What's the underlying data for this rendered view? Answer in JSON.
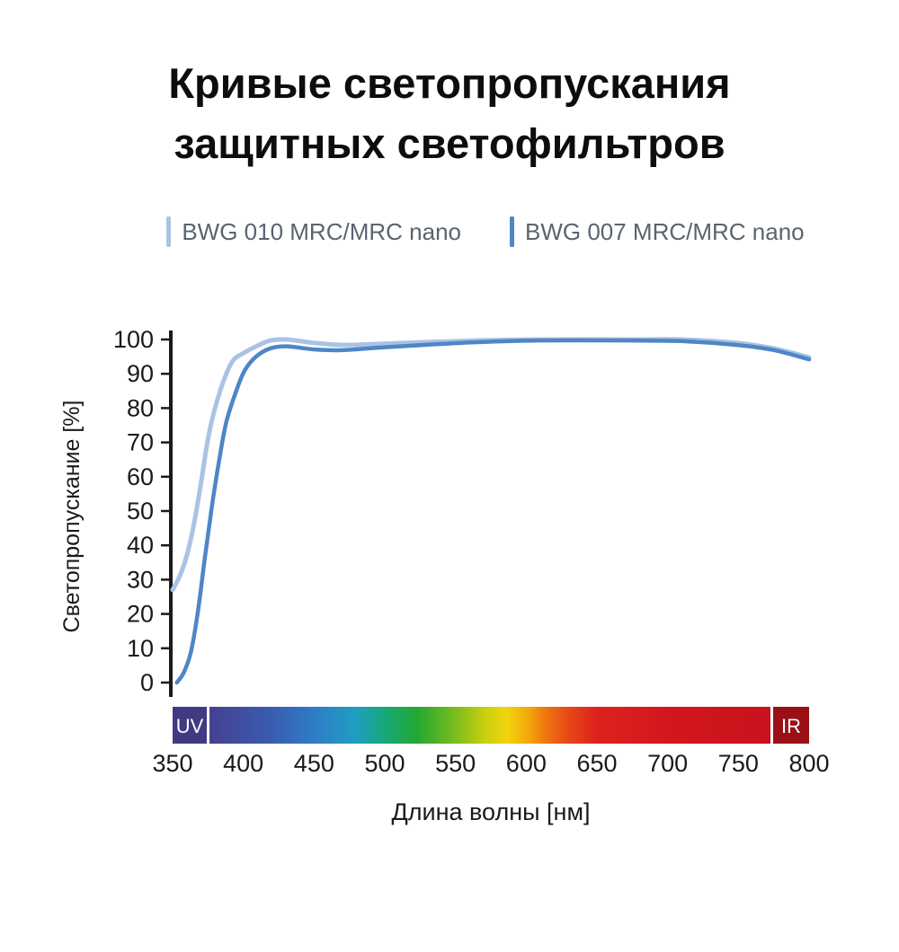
{
  "title": {
    "line1": "Кривые светопропускания",
    "line2": "защитных светофильтров"
  },
  "chart_data": {
    "type": "line",
    "title": "Кривые светопропускания защитных светофильтров",
    "xlabel": "Длина волны [нм]",
    "ylabel": "Светопропускание [%]",
    "xlim": [
      350,
      800
    ],
    "ylim": [
      0,
      100
    ],
    "xticks": [
      350,
      400,
      450,
      500,
      550,
      600,
      650,
      700,
      750,
      800
    ],
    "yticks": [
      0,
      10,
      20,
      30,
      40,
      50,
      60,
      70,
      80,
      90,
      100
    ],
    "grid": false,
    "legend_position": "top",
    "series": [
      {
        "name": "BWG 010 MRC/MRC nano",
        "color": "#a9c3e5",
        "points": [
          [
            350,
            27
          ],
          [
            355,
            31
          ],
          [
            360,
            37
          ],
          [
            365,
            46
          ],
          [
            370,
            58
          ],
          [
            375,
            71
          ],
          [
            380,
            80
          ],
          [
            387,
            89
          ],
          [
            393,
            94
          ],
          [
            400,
            96
          ],
          [
            409,
            98
          ],
          [
            419,
            99.7
          ],
          [
            431,
            100
          ],
          [
            450,
            99
          ],
          [
            470,
            98.4
          ],
          [
            495,
            98.7
          ],
          [
            527,
            99.2
          ],
          [
            565,
            99.7
          ],
          [
            609,
            100
          ],
          [
            673,
            100
          ],
          [
            711,
            100
          ],
          [
            749,
            99
          ],
          [
            775,
            97.4
          ],
          [
            800,
            94.8
          ]
        ]
      },
      {
        "name": "BWG 007 MRC/MRC nano",
        "color": "#4e86c6",
        "points": [
          [
            353,
            0
          ],
          [
            358,
            3
          ],
          [
            363,
            9
          ],
          [
            368,
            21
          ],
          [
            373,
            37
          ],
          [
            378,
            52
          ],
          [
            383,
            65
          ],
          [
            388,
            76
          ],
          [
            395,
            85
          ],
          [
            401,
            91
          ],
          [
            409,
            95
          ],
          [
            419,
            97.4
          ],
          [
            431,
            98
          ],
          [
            450,
            97.1
          ],
          [
            470,
            96.9
          ],
          [
            495,
            97.6
          ],
          [
            527,
            98.4
          ],
          [
            565,
            99.2
          ],
          [
            609,
            99.7
          ],
          [
            673,
            99.7
          ],
          [
            711,
            99.5
          ],
          [
            749,
            98.4
          ],
          [
            775,
            96.9
          ],
          [
            800,
            94.2
          ]
        ]
      }
    ],
    "spectrum_bar": {
      "uv_label": "UV",
      "ir_label": "IR",
      "uv_color": "#413a82",
      "ir_color": "#9a1016",
      "stops": [
        {
          "offset": 0,
          "color": "#45408f"
        },
        {
          "offset": 0.11,
          "color": "#3a5cb0"
        },
        {
          "offset": 0.19,
          "color": "#2e7ec6"
        },
        {
          "offset": 0.26,
          "color": "#1f9ec2"
        },
        {
          "offset": 0.31,
          "color": "#17a87c"
        },
        {
          "offset": 0.37,
          "color": "#22a832"
        },
        {
          "offset": 0.44,
          "color": "#7dbd1d"
        },
        {
          "offset": 0.49,
          "color": "#c8cf10"
        },
        {
          "offset": 0.53,
          "color": "#f2d40d"
        },
        {
          "offset": 0.57,
          "color": "#f2a60c"
        },
        {
          "offset": 0.6,
          "color": "#ee7510"
        },
        {
          "offset": 0.64,
          "color": "#e64818"
        },
        {
          "offset": 0.69,
          "color": "#dc231d"
        },
        {
          "offset": 0.82,
          "color": "#d3161e"
        },
        {
          "offset": 1,
          "color": "#c8121c"
        }
      ]
    }
  }
}
